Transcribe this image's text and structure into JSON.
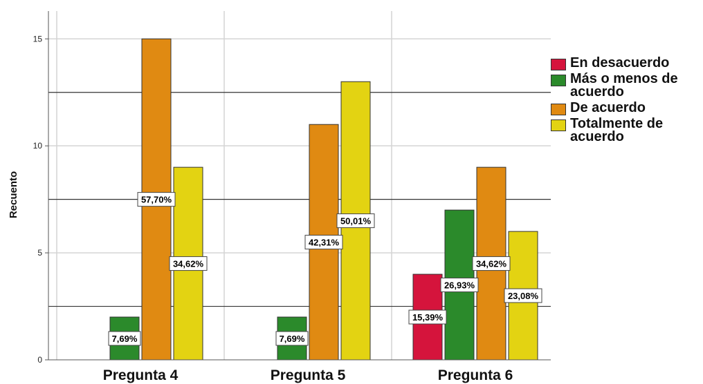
{
  "chart_data": {
    "type": "bar",
    "ylabel": "Recuento",
    "ylim": [
      0,
      16.3
    ],
    "yticks": [
      0,
      5,
      10,
      15
    ],
    "reference_lines": [
      2.5,
      7.5,
      12.5
    ],
    "categories": [
      "Pregunta 4",
      "Pregunta 5",
      "Pregunta 6"
    ],
    "series": [
      {
        "name": "En desacuerdo",
        "color": "#d5143c",
        "values": [
          0,
          0,
          4
        ],
        "labels": [
          "",
          "",
          "15,39%"
        ]
      },
      {
        "name": "Más o menos de acuerdo",
        "color": "#2b8a2b",
        "values": [
          2,
          2,
          7
        ],
        "labels": [
          "7,69%",
          "7,69%",
          "26,93%"
        ]
      },
      {
        "name": "De acuerdo",
        "color": "#e08a12",
        "values": [
          15,
          11,
          9
        ],
        "labels": [
          "57,70%",
          "42,31%",
          "34,62%"
        ]
      },
      {
        "name": "Totalmente de acuerdo",
        "color": "#e3d312",
        "values": [
          9,
          13,
          6
        ],
        "labels": [
          "34,62%",
          "50,01%",
          "23,08%"
        ]
      }
    ],
    "legend_position": "right",
    "grid": true
  }
}
